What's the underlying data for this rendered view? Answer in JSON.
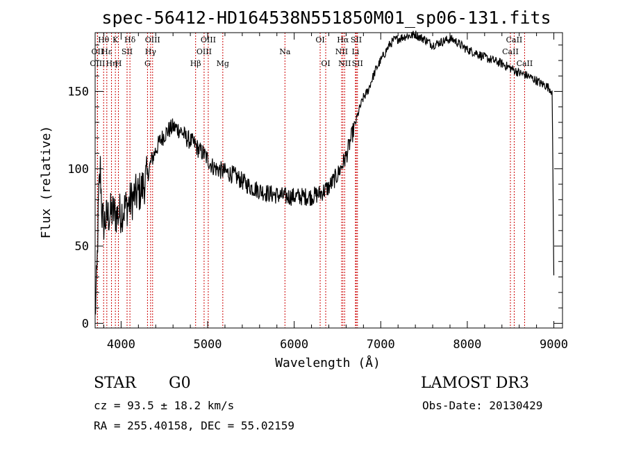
{
  "chart_data": {
    "type": "line",
    "title": "spec-56412-HD164538N551850M01_sp06-131.fits",
    "xlabel": "Wavelength (Å)",
    "ylabel": "Flux (relative)",
    "xlim": [
      3700,
      9100
    ],
    "ylim": [
      -3,
      188
    ],
    "xticks": [
      4000,
      5000,
      6000,
      7000,
      8000,
      9000
    ],
    "xtick_labels": [
      "4000",
      "5000",
      "6000",
      "7000",
      "8000",
      "9000"
    ],
    "yticks": [
      0,
      50,
      100,
      150
    ],
    "ytick_labels": [
      "0",
      "50",
      "100",
      "150"
    ],
    "grid": false,
    "series": [
      {
        "name": "spectrum",
        "color": "#000000",
        "x": [
          3700,
          3720,
          3740,
          3760,
          3780,
          3800,
          3830,
          3860,
          3900,
          3950,
          4000,
          4050,
          4100,
          4150,
          4200,
          4250,
          4300,
          4350,
          4400,
          4450,
          4500,
          4550,
          4600,
          4650,
          4700,
          4750,
          4800,
          4850,
          4900,
          4950,
          5000,
          5050,
          5100,
          5150,
          5200,
          5300,
          5400,
          5500,
          5600,
          5700,
          5800,
          5900,
          6000,
          6100,
          6200,
          6300,
          6400,
          6450,
          6500,
          6550,
          6600,
          6650,
          6700,
          6750,
          6800,
          6850,
          6900,
          6950,
          7000,
          7050,
          7100,
          7150,
          7200,
          7250,
          7300,
          7350,
          7400,
          7450,
          7500,
          7550,
          7600,
          7650,
          7700,
          7750,
          7800,
          7850,
          7900,
          7950,
          8000,
          8100,
          8200,
          8300,
          8400,
          8500,
          8600,
          8700,
          8800,
          8850,
          8900,
          8950,
          8980,
          9000
        ],
        "y": [
          5,
          30,
          80,
          100,
          70,
          65,
          68,
          70,
          72,
          70,
          72,
          75,
          78,
          82,
          84,
          88,
          95,
          105,
          112,
          118,
          122,
          125,
          127,
          126,
          124,
          120,
          118,
          116,
          112,
          110,
          106,
          102,
          100,
          99,
          98,
          96,
          92,
          88,
          86,
          84,
          83,
          82,
          82,
          82,
          82,
          84,
          88,
          92,
          96,
          102,
          108,
          118,
          128,
          138,
          146,
          150,
          158,
          165,
          170,
          175,
          180,
          183,
          184,
          185,
          186,
          186,
          187,
          185,
          184,
          182,
          180,
          181,
          182,
          183,
          184,
          183,
          181,
          179,
          177,
          175,
          172,
          170,
          168,
          165,
          162,
          160,
          157,
          155,
          154,
          152,
          150,
          30
        ]
      }
    ],
    "line_color": "#cc0000",
    "lines": [
      {
        "label": "OII",
        "wavelength": 3727,
        "row": 2
      },
      {
        "label": "OIII",
        "wavelength": 3727,
        "row": 3
      },
      {
        "label": "Hθ",
        "wavelength": 3798,
        "row": 1
      },
      {
        "label": "Hε",
        "wavelength": 3835,
        "row": 2
      },
      {
        "label": "Hη",
        "wavelength": 3889,
        "row": 3
      },
      {
        "label": "K",
        "wavelength": 3934,
        "row": 1
      },
      {
        "label": "SII",
        "wavelength": 4069,
        "row": 2
      },
      {
        "label": "H",
        "wavelength": 3969,
        "row": 3
      },
      {
        "label": "Hδ",
        "wavelength": 4102,
        "row": 1
      },
      {
        "label": "OIII",
        "wavelength": 4364,
        "row": 1
      },
      {
        "label": "Hγ",
        "wavelength": 4341,
        "row": 2
      },
      {
        "label": "G",
        "wavelength": 4305,
        "row": 3
      },
      {
        "label": "Hβ",
        "wavelength": 4861,
        "row": 3
      },
      {
        "label": "OIII",
        "wavelength": 4959,
        "row": 2
      },
      {
        "label": "OIII",
        "wavelength": 5007,
        "row": 1
      },
      {
        "label": "Mg",
        "wavelength": 5175,
        "row": 3
      },
      {
        "label": "Na",
        "wavelength": 5893,
        "row": 2
      },
      {
        "label": "OI",
        "wavelength": 6300,
        "row": 1
      },
      {
        "label": "OI",
        "wavelength": 6364,
        "row": 3
      },
      {
        "label": "Hα",
        "wavelength": 6563,
        "row": 1
      },
      {
        "label": "NII",
        "wavelength": 6548,
        "row": 2
      },
      {
        "label": "NII",
        "wavelength": 6583,
        "row": 3
      },
      {
        "label": "SII",
        "wavelength": 6717,
        "row": 1
      },
      {
        "label": "Li",
        "wavelength": 6708,
        "row": 2
      },
      {
        "label": "SII",
        "wavelength": 6731,
        "row": 3
      },
      {
        "label": "CaII",
        "wavelength": 8498,
        "row": 2
      },
      {
        "label": "CaII",
        "wavelength": 8542,
        "row": 1
      },
      {
        "label": "CaII",
        "wavelength": 8662,
        "row": 3
      }
    ]
  },
  "info": {
    "class_label": "STAR",
    "subclass": "G0",
    "survey": "LAMOST DR3",
    "cz_text": "cz = 93.5 ± 18.2 km/s",
    "obs_date_text": "Obs-Date: 20130429",
    "coords_text": "RA = 255.40158, DEC =  55.02159"
  }
}
